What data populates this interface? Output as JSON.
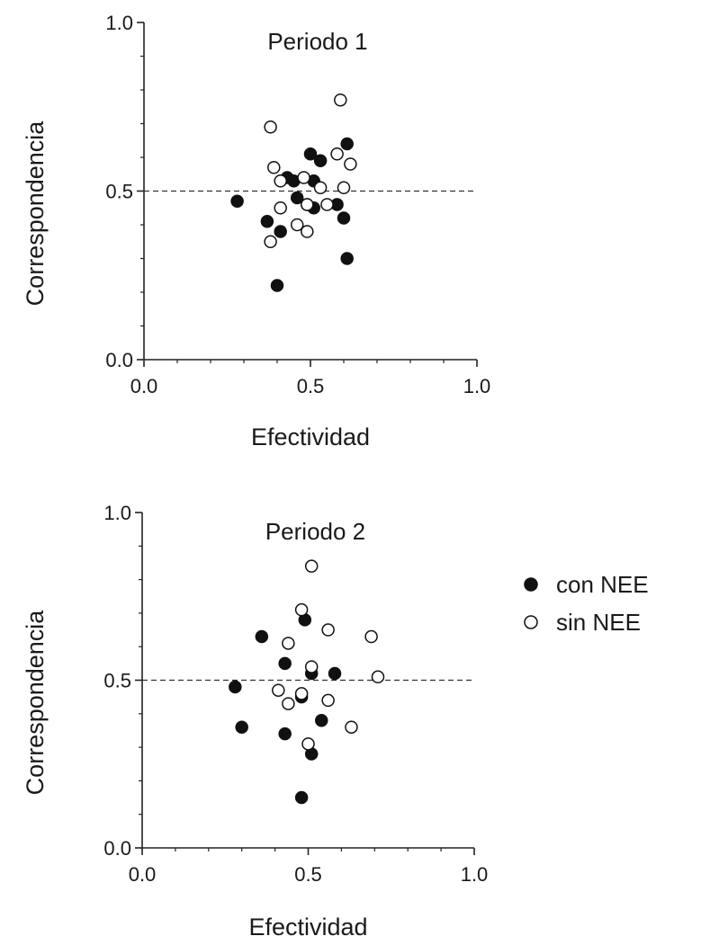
{
  "chart_data": [
    {
      "type": "scatter",
      "title": "Periodo 1",
      "xlabel": "Efectividad",
      "ylabel": "Correspondencia",
      "xlim": [
        0.0,
        1.0
      ],
      "ylim": [
        0.0,
        1.0
      ],
      "xticks": [
        "0.0",
        "0.5",
        "1.0"
      ],
      "yticks": [
        "0.0",
        "0.5",
        "1.0"
      ],
      "reference_line_y": 0.5,
      "grid": false,
      "series": [
        {
          "name": "con NEE",
          "marker": "filled-circle",
          "color": "#111111",
          "points": [
            {
              "x": 0.28,
              "y": 0.47
            },
            {
              "x": 0.37,
              "y": 0.41
            },
            {
              "x": 0.4,
              "y": 0.22
            },
            {
              "x": 0.41,
              "y": 0.38
            },
            {
              "x": 0.43,
              "y": 0.54
            },
            {
              "x": 0.45,
              "y": 0.53
            },
            {
              "x": 0.46,
              "y": 0.48
            },
            {
              "x": 0.49,
              "y": 0.46
            },
            {
              "x": 0.5,
              "y": 0.61
            },
            {
              "x": 0.51,
              "y": 0.45
            },
            {
              "x": 0.51,
              "y": 0.53
            },
            {
              "x": 0.53,
              "y": 0.59
            },
            {
              "x": 0.58,
              "y": 0.46
            },
            {
              "x": 0.6,
              "y": 0.42
            },
            {
              "x": 0.61,
              "y": 0.64
            },
            {
              "x": 0.61,
              "y": 0.3
            }
          ]
        },
        {
          "name": "sin NEE",
          "marker": "open-circle",
          "color": "#111111",
          "points": [
            {
              "x": 0.38,
              "y": 0.69
            },
            {
              "x": 0.38,
              "y": 0.35
            },
            {
              "x": 0.39,
              "y": 0.57
            },
            {
              "x": 0.41,
              "y": 0.53
            },
            {
              "x": 0.41,
              "y": 0.45
            },
            {
              "x": 0.46,
              "y": 0.4
            },
            {
              "x": 0.48,
              "y": 0.54
            },
            {
              "x": 0.49,
              "y": 0.38
            },
            {
              "x": 0.49,
              "y": 0.46
            },
            {
              "x": 0.53,
              "y": 0.51
            },
            {
              "x": 0.55,
              "y": 0.46
            },
            {
              "x": 0.58,
              "y": 0.61
            },
            {
              "x": 0.59,
              "y": 0.77
            },
            {
              "x": 0.6,
              "y": 0.51
            },
            {
              "x": 0.62,
              "y": 0.58
            }
          ]
        }
      ]
    },
    {
      "type": "scatter",
      "title": "Periodo 2",
      "xlabel": "Efectividad",
      "ylabel": "Correspondencia",
      "xlim": [
        0.0,
        1.0
      ],
      "ylim": [
        0.0,
        1.0
      ],
      "xticks": [
        "0.0",
        "0.5",
        "1.0"
      ],
      "yticks": [
        "0.0",
        "0.5",
        "1.0"
      ],
      "reference_line_y": 0.5,
      "grid": false,
      "series": [
        {
          "name": "con NEE",
          "marker": "filled-circle",
          "color": "#111111",
          "points": [
            {
              "x": 0.28,
              "y": 0.48
            },
            {
              "x": 0.3,
              "y": 0.36
            },
            {
              "x": 0.36,
              "y": 0.63
            },
            {
              "x": 0.43,
              "y": 0.55
            },
            {
              "x": 0.43,
              "y": 0.34
            },
            {
              "x": 0.48,
              "y": 0.45
            },
            {
              "x": 0.48,
              "y": 0.15
            },
            {
              "x": 0.49,
              "y": 0.68
            },
            {
              "x": 0.51,
              "y": 0.52
            },
            {
              "x": 0.51,
              "y": 0.28
            },
            {
              "x": 0.54,
              "y": 0.38
            },
            {
              "x": 0.58,
              "y": 0.52
            }
          ]
        },
        {
          "name": "sin NEE",
          "marker": "open-circle",
          "color": "#111111",
          "points": [
            {
              "x": 0.41,
              "y": 0.47
            },
            {
              "x": 0.44,
              "y": 0.61
            },
            {
              "x": 0.44,
              "y": 0.43
            },
            {
              "x": 0.48,
              "y": 0.71
            },
            {
              "x": 0.48,
              "y": 0.46
            },
            {
              "x": 0.5,
              "y": 0.31
            },
            {
              "x": 0.51,
              "y": 0.54
            },
            {
              "x": 0.51,
              "y": 0.84
            },
            {
              "x": 0.56,
              "y": 0.65
            },
            {
              "x": 0.56,
              "y": 0.44
            },
            {
              "x": 0.63,
              "y": 0.36
            },
            {
              "x": 0.69,
              "y": 0.63
            },
            {
              "x": 0.71,
              "y": 0.51
            }
          ]
        }
      ]
    }
  ],
  "legend": {
    "placement": "right of lower panel",
    "items": [
      {
        "label": "con NEE",
        "marker": "filled-circle"
      },
      {
        "label": "sin NEE",
        "marker": "open-circle"
      }
    ]
  }
}
